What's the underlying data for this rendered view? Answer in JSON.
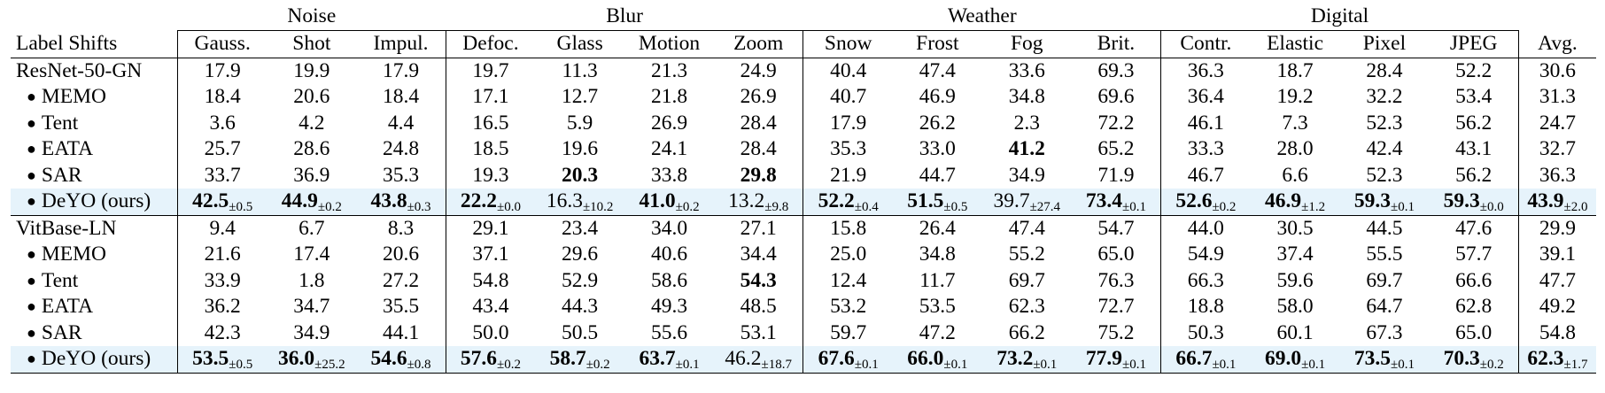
{
  "groups": [
    {
      "name": "Noise",
      "span": 3
    },
    {
      "name": "Blur",
      "span": 4
    },
    {
      "name": "Weather",
      "span": 4
    },
    {
      "name": "Digital",
      "span": 4
    }
  ],
  "columns": [
    "Label Shifts",
    "Gauss.",
    "Shot",
    "Impul.",
    "Defoc.",
    "Glass",
    "Motion",
    "Zoom",
    "Snow",
    "Frost",
    "Fog",
    "Brit.",
    "Contr.",
    "Elastic",
    "Pixel",
    "JPEG",
    "Avg."
  ],
  "bullet": "●",
  "blocks": [
    {
      "rows": [
        {
          "label": "ResNet-50-GN",
          "ours": false,
          "cells": [
            {
              "v": "17.9"
            },
            {
              "v": "19.9"
            },
            {
              "v": "17.9"
            },
            {
              "v": "19.7"
            },
            {
              "v": "11.3"
            },
            {
              "v": "21.3"
            },
            {
              "v": "24.9"
            },
            {
              "v": "40.4"
            },
            {
              "v": "47.4"
            },
            {
              "v": "33.6"
            },
            {
              "v": "69.3"
            },
            {
              "v": "36.3"
            },
            {
              "v": "18.7"
            },
            {
              "v": "28.4"
            },
            {
              "v": "52.2"
            },
            {
              "v": "30.6"
            }
          ]
        },
        {
          "label": "MEMO",
          "method": true,
          "ours": false,
          "cells": [
            {
              "v": "18.4"
            },
            {
              "v": "20.6"
            },
            {
              "v": "18.4"
            },
            {
              "v": "17.1"
            },
            {
              "v": "12.7"
            },
            {
              "v": "21.8"
            },
            {
              "v": "26.9"
            },
            {
              "v": "40.7"
            },
            {
              "v": "46.9"
            },
            {
              "v": "34.8"
            },
            {
              "v": "69.6"
            },
            {
              "v": "36.4"
            },
            {
              "v": "19.2"
            },
            {
              "v": "32.2"
            },
            {
              "v": "53.4"
            },
            {
              "v": "31.3"
            }
          ]
        },
        {
          "label": "Tent",
          "method": true,
          "ours": false,
          "cells": [
            {
              "v": "3.6"
            },
            {
              "v": "4.2"
            },
            {
              "v": "4.4"
            },
            {
              "v": "16.5"
            },
            {
              "v": "5.9"
            },
            {
              "v": "26.9"
            },
            {
              "v": "28.4"
            },
            {
              "v": "17.9"
            },
            {
              "v": "26.2"
            },
            {
              "v": "2.3"
            },
            {
              "v": "72.2"
            },
            {
              "v": "46.1"
            },
            {
              "v": "7.3"
            },
            {
              "v": "52.3"
            },
            {
              "v": "56.2"
            },
            {
              "v": "24.7"
            }
          ]
        },
        {
          "label": "EATA",
          "method": true,
          "ours": false,
          "cells": [
            {
              "v": "25.7"
            },
            {
              "v": "28.6"
            },
            {
              "v": "24.8"
            },
            {
              "v": "18.5"
            },
            {
              "v": "19.6"
            },
            {
              "v": "24.1"
            },
            {
              "v": "28.4"
            },
            {
              "v": "35.3"
            },
            {
              "v": "33.0"
            },
            {
              "v": "41.2",
              "b": true
            },
            {
              "v": "65.2"
            },
            {
              "v": "33.3"
            },
            {
              "v": "28.0"
            },
            {
              "v": "42.4"
            },
            {
              "v": "43.1"
            },
            {
              "v": "32.7"
            }
          ]
        },
        {
          "label": "SAR",
          "method": true,
          "ours": false,
          "cells": [
            {
              "v": "33.7"
            },
            {
              "v": "36.9"
            },
            {
              "v": "35.3"
            },
            {
              "v": "19.3"
            },
            {
              "v": "20.3",
              "b": true
            },
            {
              "v": "33.8"
            },
            {
              "v": "29.8",
              "b": true
            },
            {
              "v": "21.9"
            },
            {
              "v": "44.7"
            },
            {
              "v": "34.9"
            },
            {
              "v": "71.9"
            },
            {
              "v": "46.7"
            },
            {
              "v": "6.6"
            },
            {
              "v": "52.3"
            },
            {
              "v": "56.2"
            },
            {
              "v": "36.3"
            }
          ]
        },
        {
          "label": "DeYO (ours)",
          "method": true,
          "ours": true,
          "cells": [
            {
              "v": "42.5",
              "b": true,
              "s": "±0.5"
            },
            {
              "v": "44.9",
              "b": true,
              "s": "±0.2"
            },
            {
              "v": "43.8",
              "b": true,
              "s": "±0.3"
            },
            {
              "v": "22.2",
              "b": true,
              "s": "±0.0"
            },
            {
              "v": "16.3",
              "s": "±10.2"
            },
            {
              "v": "41.0",
              "b": true,
              "s": "±0.2"
            },
            {
              "v": "13.2",
              "s": "±9.8"
            },
            {
              "v": "52.2",
              "b": true,
              "s": "±0.4"
            },
            {
              "v": "51.5",
              "b": true,
              "s": "±0.5"
            },
            {
              "v": "39.7",
              "s": "±27.4"
            },
            {
              "v": "73.4",
              "b": true,
              "s": "±0.1"
            },
            {
              "v": "52.6",
              "b": true,
              "s": "±0.2"
            },
            {
              "v": "46.9",
              "b": true,
              "s": "±1.2"
            },
            {
              "v": "59.3",
              "b": true,
              "s": "±0.1"
            },
            {
              "v": "59.3",
              "b": true,
              "s": "±0.0"
            },
            {
              "v": "43.9",
              "b": true,
              "s": "±2.0"
            }
          ]
        }
      ]
    },
    {
      "rows": [
        {
          "label": "VitBase-LN",
          "ours": false,
          "cells": [
            {
              "v": "9.4"
            },
            {
              "v": "6.7"
            },
            {
              "v": "8.3"
            },
            {
              "v": "29.1"
            },
            {
              "v": "23.4"
            },
            {
              "v": "34.0"
            },
            {
              "v": "27.1"
            },
            {
              "v": "15.8"
            },
            {
              "v": "26.4"
            },
            {
              "v": "47.4"
            },
            {
              "v": "54.7"
            },
            {
              "v": "44.0"
            },
            {
              "v": "30.5"
            },
            {
              "v": "44.5"
            },
            {
              "v": "47.6"
            },
            {
              "v": "29.9"
            }
          ]
        },
        {
          "label": "MEMO",
          "method": true,
          "ours": false,
          "cells": [
            {
              "v": "21.6"
            },
            {
              "v": "17.4"
            },
            {
              "v": "20.6"
            },
            {
              "v": "37.1"
            },
            {
              "v": "29.6"
            },
            {
              "v": "40.6"
            },
            {
              "v": "34.4"
            },
            {
              "v": "25.0"
            },
            {
              "v": "34.8"
            },
            {
              "v": "55.2"
            },
            {
              "v": "65.0"
            },
            {
              "v": "54.9"
            },
            {
              "v": "37.4"
            },
            {
              "v": "55.5"
            },
            {
              "v": "57.7"
            },
            {
              "v": "39.1"
            }
          ]
        },
        {
          "label": "Tent",
          "method": true,
          "ours": false,
          "cells": [
            {
              "v": "33.9"
            },
            {
              "v": "1.8"
            },
            {
              "v": "27.2"
            },
            {
              "v": "54.8"
            },
            {
              "v": "52.9"
            },
            {
              "v": "58.6"
            },
            {
              "v": "54.3",
              "b": true
            },
            {
              "v": "12.4"
            },
            {
              "v": "11.7"
            },
            {
              "v": "69.7"
            },
            {
              "v": "76.3"
            },
            {
              "v": "66.3"
            },
            {
              "v": "59.6"
            },
            {
              "v": "69.7"
            },
            {
              "v": "66.6"
            },
            {
              "v": "47.7"
            }
          ]
        },
        {
          "label": "EATA",
          "method": true,
          "ours": false,
          "cells": [
            {
              "v": "36.2"
            },
            {
              "v": "34.7"
            },
            {
              "v": "35.5"
            },
            {
              "v": "43.4"
            },
            {
              "v": "44.3"
            },
            {
              "v": "49.3"
            },
            {
              "v": "48.5"
            },
            {
              "v": "53.2"
            },
            {
              "v": "53.5"
            },
            {
              "v": "62.3"
            },
            {
              "v": "72.7"
            },
            {
              "v": "18.8"
            },
            {
              "v": "58.0"
            },
            {
              "v": "64.7"
            },
            {
              "v": "62.8"
            },
            {
              "v": "49.2"
            }
          ]
        },
        {
          "label": "SAR",
          "method": true,
          "ours": false,
          "cells": [
            {
              "v": "42.3"
            },
            {
              "v": "34.9"
            },
            {
              "v": "44.1"
            },
            {
              "v": "50.0"
            },
            {
              "v": "50.5"
            },
            {
              "v": "55.6"
            },
            {
              "v": "53.1"
            },
            {
              "v": "59.7"
            },
            {
              "v": "47.2"
            },
            {
              "v": "66.2"
            },
            {
              "v": "75.2"
            },
            {
              "v": "50.3"
            },
            {
              "v": "60.1"
            },
            {
              "v": "67.3"
            },
            {
              "v": "65.0"
            },
            {
              "v": "54.8"
            }
          ]
        },
        {
          "label": "DeYO (ours)",
          "method": true,
          "ours": true,
          "cells": [
            {
              "v": "53.5",
              "b": true,
              "s": "±0.5"
            },
            {
              "v": "36.0",
              "b": true,
              "s": "±25.2"
            },
            {
              "v": "54.6",
              "b": true,
              "s": "±0.8"
            },
            {
              "v": "57.6",
              "b": true,
              "s": "±0.2"
            },
            {
              "v": "58.7",
              "b": true,
              "s": "±0.2"
            },
            {
              "v": "63.7",
              "b": true,
              "s": "±0.1"
            },
            {
              "v": "46.2",
              "s": "±18.7"
            },
            {
              "v": "67.6",
              "b": true,
              "s": "±0.1"
            },
            {
              "v": "66.0",
              "b": true,
              "s": "±0.1"
            },
            {
              "v": "73.2",
              "b": true,
              "s": "±0.1"
            },
            {
              "v": "77.9",
              "b": true,
              "s": "±0.1"
            },
            {
              "v": "66.7",
              "b": true,
              "s": "±0.1"
            },
            {
              "v": "69.0",
              "b": true,
              "s": "±0.1"
            },
            {
              "v": "73.5",
              "b": true,
              "s": "±0.1"
            },
            {
              "v": "70.3",
              "b": true,
              "s": "±0.2"
            },
            {
              "v": "62.3",
              "b": true,
              "s": "±1.7"
            }
          ]
        }
      ]
    }
  ]
}
